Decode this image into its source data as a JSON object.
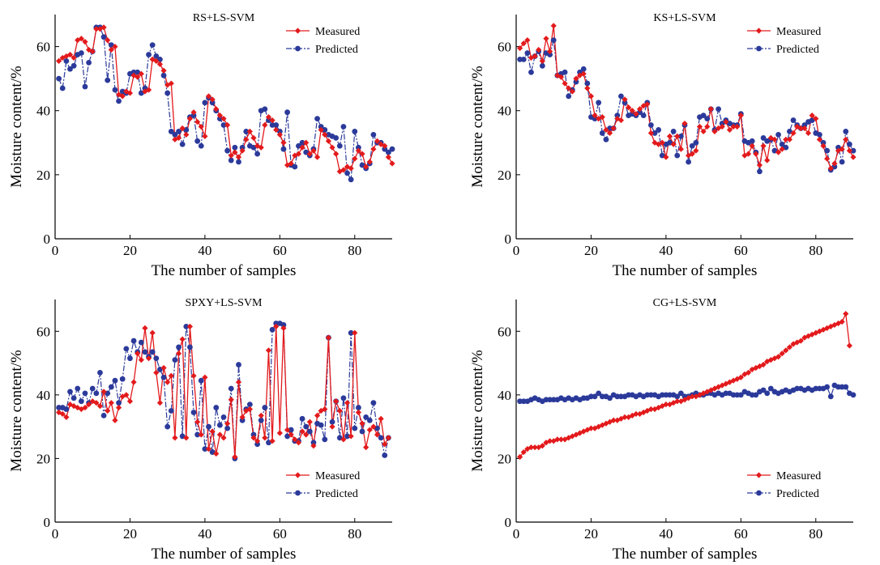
{
  "colors": {
    "measured": "#e31a1c",
    "predicted": "#2b3a9a"
  },
  "panels": [
    {
      "title": "RS+LS-SVM",
      "xlabel": "The number of samples",
      "ylabel": "Moisture content/%",
      "legend_position": "top-right",
      "legend_measured": "Measured",
      "legend_predicted": "Predicted",
      "xticks": [
        "0",
        "20",
        "40",
        "60",
        "80"
      ],
      "yticks": [
        "0",
        "20",
        "40",
        "60"
      ]
    },
    {
      "title": "KS+LS-SVM",
      "xlabel": "The number of samples",
      "ylabel": "Moisture content/%",
      "legend_position": "top-right",
      "legend_measured": "Measured",
      "legend_predicted": "Predicted",
      "xticks": [
        "0",
        "20",
        "40",
        "60",
        "80"
      ],
      "yticks": [
        "0",
        "20",
        "40",
        "60"
      ]
    },
    {
      "title": "SPXY+LS-SVM",
      "xlabel": "The number of samples",
      "ylabel": "Moisture content/%",
      "legend_position": "bottom-right",
      "legend_measured": "Measured",
      "legend_predicted": "Predicted",
      "xticks": [
        "0",
        "20",
        "40",
        "60",
        "80"
      ],
      "yticks": [
        "0",
        "20",
        "40",
        "60"
      ]
    },
    {
      "title": "CG+LS-SVM",
      "xlabel": "The number of samples",
      "ylabel": "Moisture content/%",
      "legend_position": "bottom-right",
      "legend_measured": "Measured",
      "legend_predicted": "Predicted",
      "xticks": [
        "0",
        "20",
        "40",
        "60",
        "80"
      ],
      "yticks": [
        "0",
        "20",
        "40",
        "60"
      ]
    }
  ],
  "chart_data": [
    {
      "type": "line",
      "title": "RS+LS-SVM",
      "xlabel": "The number of samples",
      "ylabel": "Moisture content/%",
      "xlim": [
        0,
        90
      ],
      "ylim": [
        0,
        70
      ],
      "grid": false,
      "legend": "top-right",
      "series": [
        {
          "name": "Measured",
          "values": [
            55.5,
            56.5,
            57,
            57.5,
            56.5,
            62,
            62.5,
            61.5,
            59,
            58.5,
            65.5,
            65.5,
            66,
            62,
            59,
            60,
            45,
            44.5,
            46,
            45.5,
            51,
            50.5,
            51.5,
            46,
            46.5,
            56,
            55.5,
            54.5,
            52.5,
            48,
            48.5,
            31,
            31.5,
            34.5,
            32.5,
            37.5,
            39.5,
            36.5,
            35,
            32,
            44.5,
            43.5,
            40.5,
            38.5,
            37.5,
            35.5,
            26,
            27,
            25.5,
            27.5,
            31,
            33.5,
            31.5,
            29,
            28.5,
            35.5,
            38,
            37,
            34,
            32.5,
            30,
            23,
            23.5,
            26,
            26.5,
            28.5,
            30,
            26.5,
            27.5,
            25.5,
            34,
            32.5,
            30.5,
            28.5,
            26.5,
            21,
            21.5,
            22.5,
            22,
            25,
            27.5,
            26.5,
            22.5,
            24,
            28,
            30.5,
            29.5,
            29,
            25.5,
            23.5
          ]
        },
        {
          "name": "Predicted",
          "values": [
            50,
            47,
            55.5,
            53,
            54,
            57.5,
            58,
            47.5,
            55,
            58.5,
            66,
            66,
            63,
            49.5,
            60.5,
            46.5,
            43,
            46,
            45.5,
            51.5,
            52,
            52,
            45.5,
            47,
            57.5,
            60.5,
            57,
            56,
            51,
            45.5,
            33.5,
            32.5,
            33.5,
            29.5,
            34,
            38,
            38.5,
            30.5,
            29,
            42.5,
            44,
            42.5,
            40,
            37.5,
            35.5,
            27.5,
            24.5,
            28.5,
            24,
            28.5,
            33.5,
            29,
            28.5,
            26.5,
            40,
            40.5,
            37,
            35.5,
            35.5,
            33.5,
            28,
            39.5,
            23,
            22.5,
            29,
            30,
            27,
            26,
            28,
            37.5,
            35,
            34,
            32.5,
            32,
            31.5,
            29,
            35,
            20.5,
            18.5,
            33.5,
            28.5,
            23,
            22,
            23.5,
            32.5,
            30,
            30,
            28,
            27,
            28
          ]
        }
      ]
    },
    {
      "type": "line",
      "title": "KS+LS-SVM",
      "xlabel": "The number of samples",
      "ylabel": "Moisture content/%",
      "xlim": [
        0,
        90
      ],
      "ylim": [
        0,
        70
      ],
      "grid": false,
      "legend": "top-right",
      "series": [
        {
          "name": "Measured",
          "values": [
            59.5,
            61,
            62,
            56.5,
            57,
            59,
            55.5,
            62.5,
            58.5,
            66.5,
            51,
            50.5,
            48.5,
            47,
            46,
            50,
            51,
            51.5,
            47,
            44.5,
            38.5,
            37.5,
            38,
            34,
            33,
            34.5,
            37.5,
            37,
            43.5,
            41,
            40,
            39,
            40.5,
            41.5,
            42,
            33,
            30,
            29.5,
            30,
            25.5,
            32,
            29.5,
            32,
            28,
            36,
            26,
            26.5,
            27.5,
            35,
            33.5,
            35,
            40.5,
            33.5,
            34.5,
            35,
            36.5,
            34,
            35,
            35,
            38.5,
            26,
            26.5,
            29,
            26.5,
            23,
            29,
            24.5,
            31.5,
            31,
            27,
            28,
            31,
            31,
            33,
            35,
            34.5,
            34.5,
            33,
            38.5,
            37.5,
            31,
            29,
            25,
            22,
            23.5,
            27.5,
            28,
            31,
            27.5,
            25.5
          ]
        },
        {
          "name": "Predicted",
          "values": [
            56,
            56,
            58,
            52,
            57,
            58.5,
            54,
            58,
            57.5,
            62,
            51,
            51.5,
            52,
            44.5,
            46.5,
            49,
            52,
            53,
            48.5,
            38,
            37.5,
            42.5,
            33,
            31,
            34.5,
            34.5,
            38.5,
            44.5,
            42.5,
            38.5,
            39,
            38.5,
            39.5,
            38.5,
            42.5,
            35.5,
            33,
            34,
            26,
            29.5,
            30,
            33.5,
            26,
            32,
            35.5,
            24,
            29,
            30,
            38,
            38.5,
            37.5,
            40.5,
            34,
            40.5,
            36,
            37,
            36,
            35.5,
            35.5,
            39,
            30.5,
            30,
            30.5,
            27,
            21,
            31.5,
            30.5,
            31,
            27.5,
            32.5,
            29.5,
            28.5,
            33.5,
            37,
            35.5,
            34.5,
            35.5,
            36.5,
            37,
            33,
            32.5,
            30,
            27.5,
            21.5,
            22.5,
            28.5,
            24,
            33.5,
            29.5,
            27.5
          ]
        }
      ]
    },
    {
      "type": "line",
      "title": "SPXY+LS-SVM",
      "xlabel": "The number of samples",
      "ylabel": "Moisture content/%",
      "xlim": [
        0,
        90
      ],
      "ylim": [
        0,
        70
      ],
      "grid": false,
      "legend": "bottom-right",
      "series": [
        {
          "name": "Measured",
          "values": [
            34.5,
            34,
            33,
            37,
            36.5,
            36,
            35.5,
            36,
            37,
            38,
            37.5,
            36.5,
            41,
            35,
            37.5,
            32,
            36,
            39.5,
            40,
            38,
            44,
            53,
            51,
            61,
            51.5,
            59.5,
            47,
            37.5,
            48.5,
            44,
            46,
            26.5,
            53,
            57.5,
            26.5,
            61.5,
            46,
            31.5,
            27.5,
            45.5,
            23,
            28.5,
            21.5,
            27.5,
            26.5,
            31,
            38.5,
            20.5,
            44,
            33,
            35,
            35.5,
            26.5,
            25.5,
            33.5,
            26.5,
            54,
            25.5,
            61.5,
            28,
            61,
            29,
            27.5,
            26,
            25,
            28.5,
            27.5,
            31.5,
            24,
            33.5,
            35,
            35.5,
            58,
            30,
            38,
            35,
            26,
            37.5,
            27,
            59.5,
            34.5,
            31,
            23.5,
            29,
            30,
            27.5,
            32.5,
            24.5,
            26.5
          ]
        },
        {
          "name": "Predicted",
          "values": [
            36,
            36,
            35.5,
            41,
            39,
            42,
            38,
            40.5,
            37.5,
            42,
            40.5,
            47,
            33.5,
            40.5,
            42.5,
            44.5,
            37.5,
            45,
            54.5,
            51.5,
            57,
            53.5,
            56.5,
            53.5,
            52,
            53.5,
            51.5,
            48,
            45.5,
            30,
            35,
            51,
            55,
            27,
            61.5,
            55,
            34.5,
            27.5,
            44.5,
            23,
            30,
            22,
            36,
            30.5,
            33,
            29.5,
            42,
            20,
            49.5,
            32,
            35.5,
            37,
            27.5,
            24.5,
            32,
            36,
            25,
            60.5,
            62.5,
            62.5,
            62,
            27,
            29,
            25.5,
            25.5,
            32.5,
            30,
            28.5,
            25,
            31,
            30.5,
            26,
            58,
            31.5,
            38,
            26.5,
            39,
            27,
            59.5,
            29.5,
            36,
            28.5,
            33,
            32,
            37.5,
            29.5,
            26.5,
            21,
            26.5
          ]
        }
      ]
    },
    {
      "type": "line",
      "title": "CG+LS-SVM",
      "xlabel": "The number of samples",
      "ylabel": "Moisture content/%",
      "xlim": [
        0,
        90
      ],
      "ylim": [
        0,
        70
      ],
      "grid": false,
      "legend": "bottom-right",
      "series": [
        {
          "name": "Measured",
          "values": [
            20.5,
            22,
            23,
            23.5,
            23.5,
            23.5,
            24,
            25,
            25.5,
            25.5,
            26,
            26,
            26,
            26.5,
            27,
            27.5,
            28,
            28.5,
            29,
            29.5,
            29.5,
            30,
            30.5,
            31,
            31.5,
            32,
            32,
            32.5,
            33,
            33,
            33.5,
            34,
            34,
            34.5,
            35,
            35.5,
            35.5,
            36,
            36.5,
            37,
            37,
            37.5,
            38,
            38,
            38.5,
            39,
            39.5,
            39.5,
            40,
            40.5,
            41,
            41.5,
            42,
            42.5,
            43,
            43.5,
            44,
            44.5,
            45,
            45.5,
            46.5,
            47,
            48,
            48.5,
            49,
            49.5,
            50.5,
            51,
            51.5,
            52,
            53,
            54,
            55,
            56,
            56.5,
            57,
            58,
            58.5,
            59,
            59.5,
            60,
            60.5,
            61,
            61.5,
            62,
            62.5,
            63,
            65.5,
            55.5
          ]
        },
        {
          "name": "Predicted",
          "values": [
            38,
            38,
            38,
            38.5,
            39,
            38.5,
            38,
            38.5,
            38.5,
            38.5,
            38.5,
            39,
            38.5,
            39,
            38.5,
            39,
            38.5,
            39,
            39,
            39.5,
            39.5,
            40.5,
            39.5,
            39.5,
            39,
            40,
            39.5,
            39.5,
            39.5,
            40,
            40,
            39.5,
            40,
            39.5,
            40,
            40,
            40,
            39.5,
            40,
            40,
            40,
            40,
            39.5,
            40.5,
            39.5,
            39.5,
            40,
            40.5,
            40,
            40,
            40.5,
            40.5,
            40,
            40.5,
            40,
            40.5,
            40.5,
            40,
            40,
            40,
            41,
            40.5,
            40,
            40,
            41,
            41.5,
            40.5,
            42,
            41,
            40.5,
            41,
            41.5,
            41,
            41.5,
            42,
            42,
            41.5,
            42,
            41.5,
            42,
            42,
            42,
            42.5,
            39.5,
            43,
            42.5,
            42.5,
            42.5,
            40.5,
            40
          ]
        }
      ]
    }
  ]
}
